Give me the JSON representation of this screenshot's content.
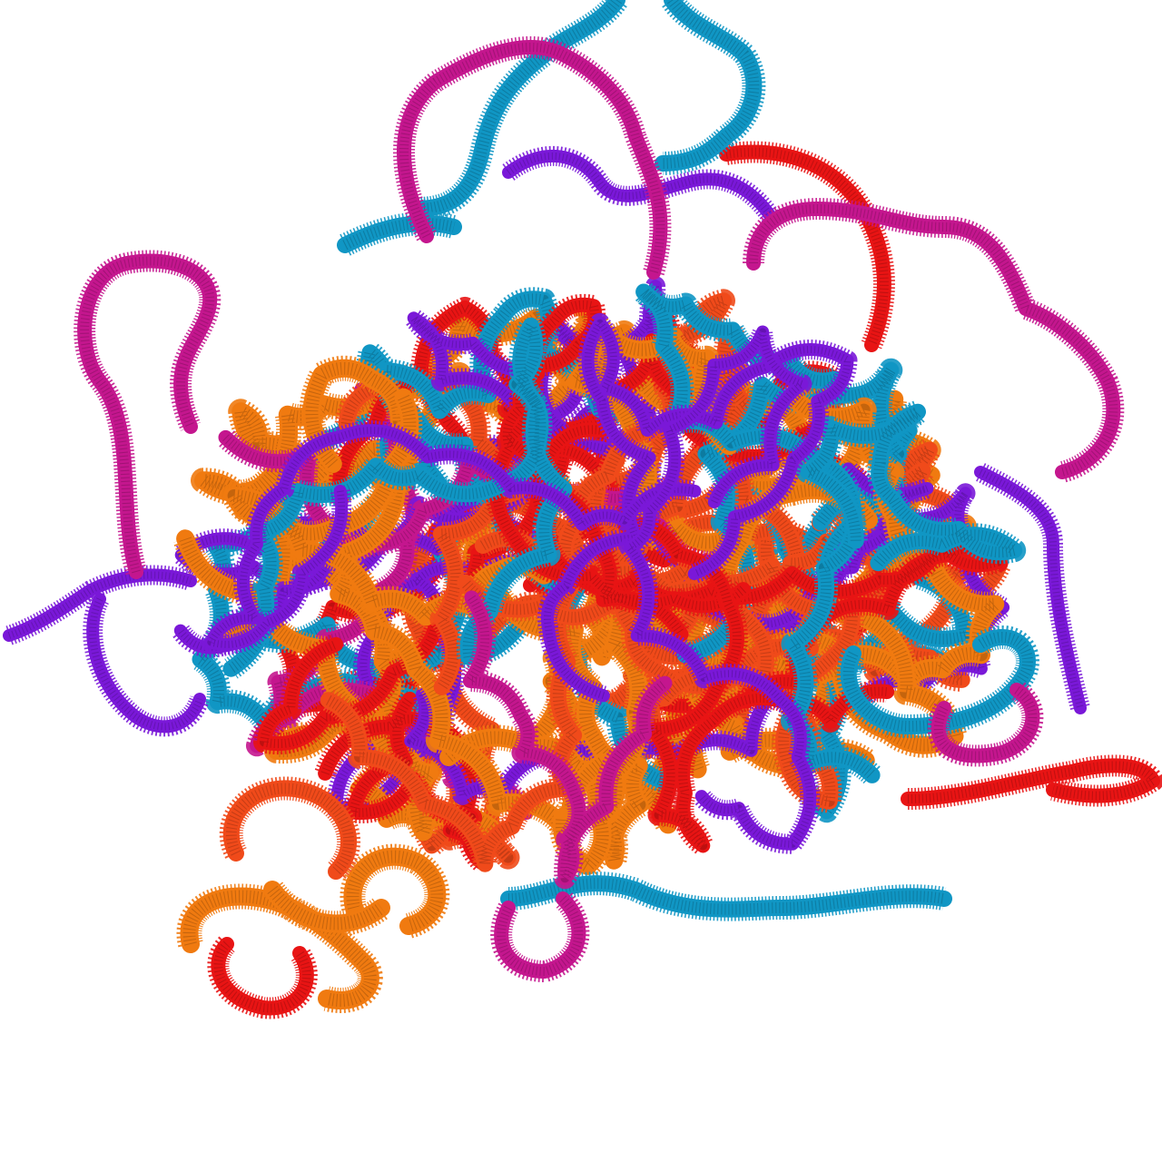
{
  "scene": {
    "subject": "tangled-chromatin-tubes",
    "background": "#ffffff",
    "palette": {
      "orange": "#f07a10",
      "red_orange": "#f04a1a",
      "red": "#e81414",
      "purple": "#7a18d8",
      "magenta": "#c4168e",
      "cyan": "#1096c4"
    },
    "strand_order": [
      "orange",
      "red_orange",
      "red",
      "cyan",
      "purple",
      "magenta"
    ]
  }
}
